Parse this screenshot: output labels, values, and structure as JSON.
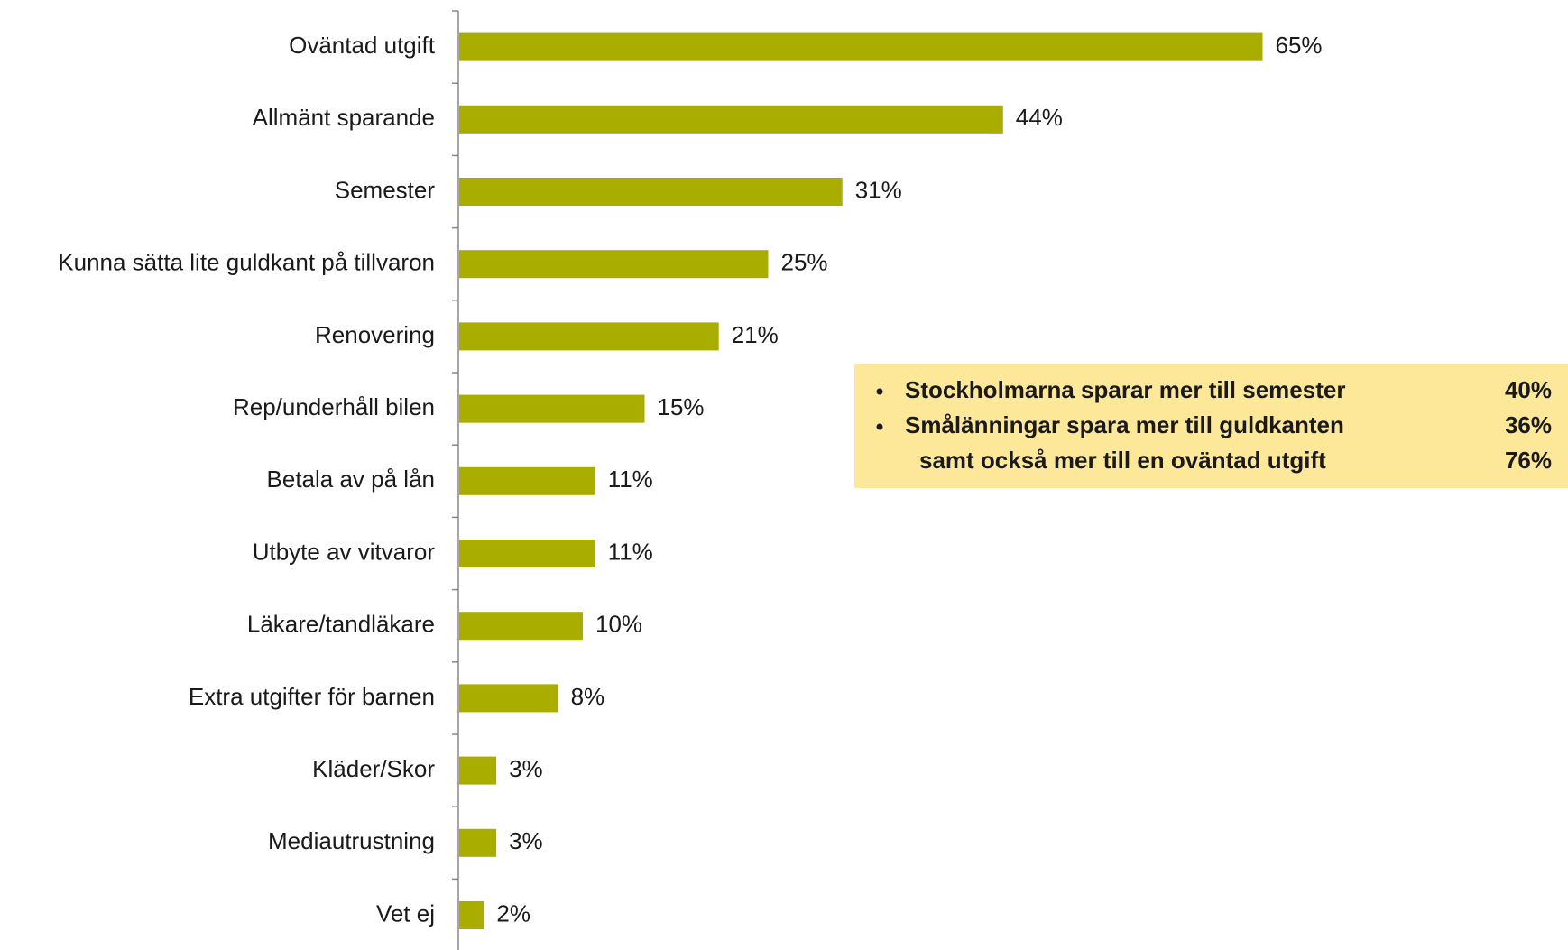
{
  "chart_data": {
    "type": "bar",
    "orientation": "horizontal",
    "categories": [
      "Oväntad utgift",
      "Allmänt sparande",
      "Semester",
      "Kunna sätta lite guldkant på tillvaron",
      "Renovering",
      "Rep/underhåll bilen",
      "Betala av på lån",
      "Utbyte av vitvaror",
      "Läkare/tandläkare",
      "Extra utgifter för barnen",
      "Kläder/Skor",
      "Mediautrustning",
      "Vet ej"
    ],
    "values": [
      65,
      44,
      31,
      25,
      21,
      15,
      11,
      11,
      10,
      8,
      3,
      3,
      2
    ],
    "value_labels": [
      "65%",
      "44%",
      "31%",
      "25%",
      "21%",
      "15%",
      "11%",
      "11%",
      "10%",
      "8%",
      "3%",
      "3%",
      "2%"
    ],
    "color": "#a8ad00",
    "annotation": {
      "background": "#fde89a",
      "lines": [
        {
          "bullet": true,
          "text": "Stockholmarna sparar mer till semester",
          "label": "40%"
        },
        {
          "bullet": true,
          "text": "Smålänningar spara mer till guldkanten",
          "label": "36%"
        },
        {
          "bullet": false,
          "text": "samt  också mer till  en oväntad utgift",
          "label": "76%"
        }
      ]
    }
  }
}
